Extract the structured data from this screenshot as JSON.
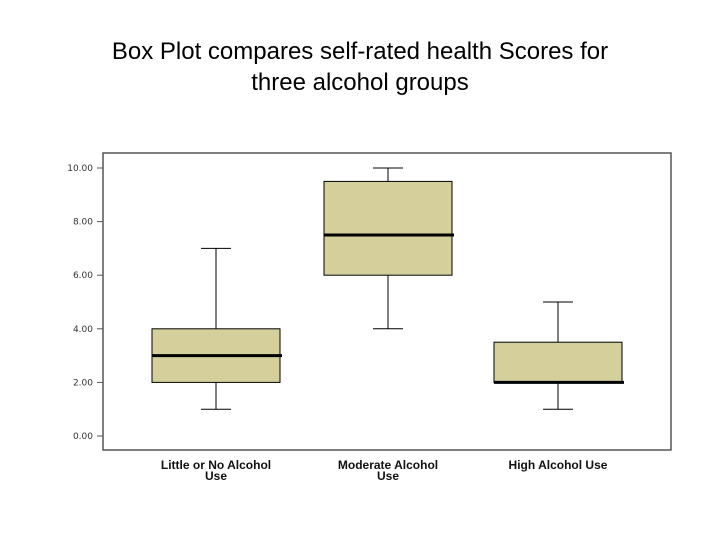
{
  "title_line1": "Box Plot compares self-rated health Scores for",
  "title_line2": "three alcohol groups",
  "chart_data": {
    "type": "box",
    "title": "Box Plot compares self-rated health Scores for three alcohol groups",
    "xlabel": "",
    "ylabel": "",
    "ylim": [
      0,
      10
    ],
    "yticks": [
      0,
      2,
      4,
      6,
      8,
      10
    ],
    "ytick_labels": [
      "0.00",
      "2.00",
      "4.00",
      "6.00",
      "8.00",
      "10.00"
    ],
    "categories": [
      [
        "Little or No Alcohol",
        "Use"
      ],
      [
        "Moderate Alcohol",
        "Use"
      ],
      [
        "High Alcohol Use"
      ]
    ],
    "boxes": [
      {
        "min": 1,
        "q1": 2,
        "median": 3,
        "q3": 4,
        "max": 7
      },
      {
        "min": 4,
        "q1": 6,
        "median": 7.5,
        "q3": 9.5,
        "max": 10
      },
      {
        "min": 1,
        "q1": 2,
        "median": 2,
        "q3": 3.5,
        "max": 5
      }
    ],
    "box_color": "#d4cf9b",
    "grid": false
  }
}
